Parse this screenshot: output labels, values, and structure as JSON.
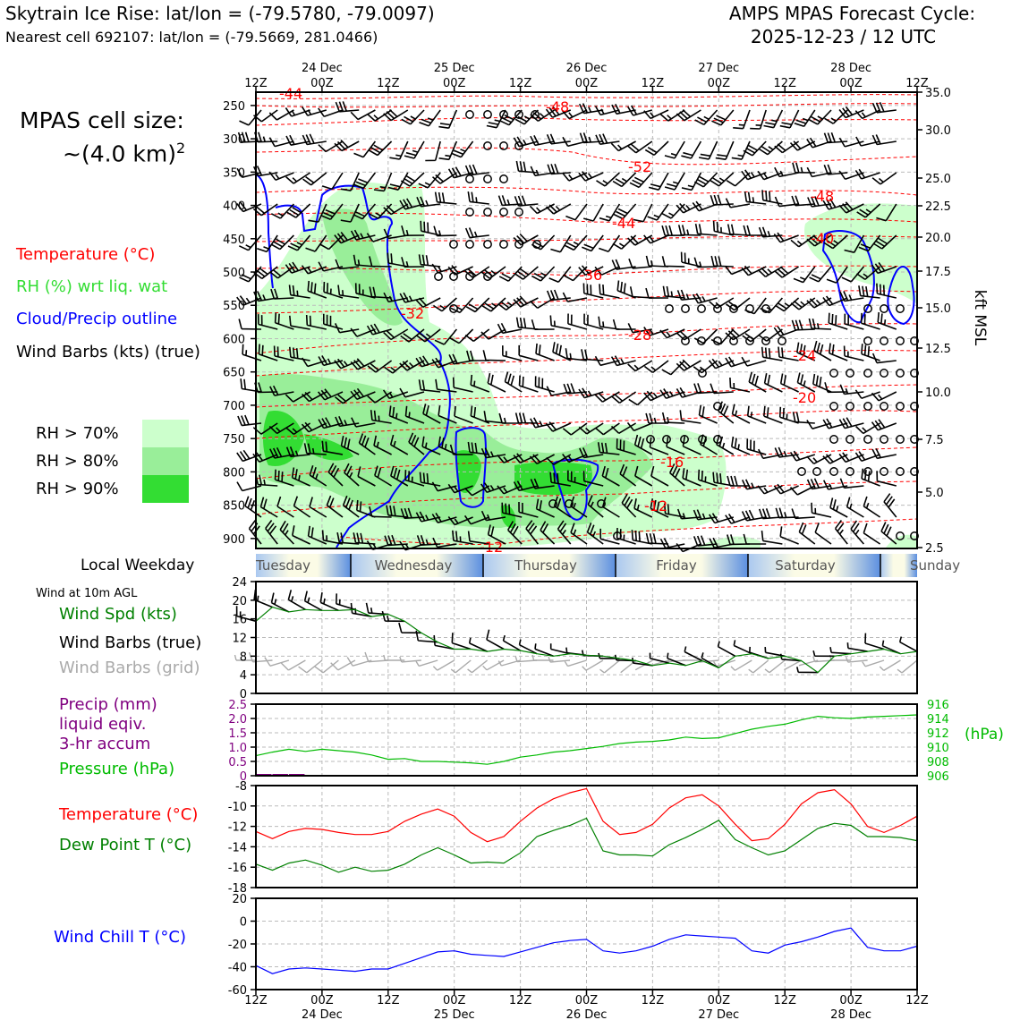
{
  "header": {
    "title_left": "Skytrain Ice Rise: lat/lon = (-79.5780, -79.0097)",
    "subtitle_left": "Nearest cell 692107: lat/lon = (-79.5669, 281.0466)",
    "title_right_1": "AMPS MPAS Forecast Cycle:",
    "title_right_2": "2025-12-23 / 12 UTC"
  },
  "legend": {
    "cell_size_1": "MPAS cell size:",
    "cell_size_2": "~(4.0 km)",
    "cell_size_sup": "2",
    "temperature": "Temperature (°C)",
    "rh": "RH (%) wrt liq. wat",
    "cloud": "Cloud/Precip outline",
    "wind_barbs": "Wind Barbs (kts) (true)",
    "rh70": "RH > 70%",
    "rh80": "RH > 80%",
    "rh90": "RH > 90%",
    "local_weekday": "Local Weekday",
    "wind_10m": "Wind at 10m AGL",
    "wind_spd": "Wind Spd (kts)",
    "barbs_true": "Wind Barbs (true)",
    "barbs_grid": "Wind Barbs (grid)",
    "precip_1": "Precip (mm)",
    "precip_2": "liquid eqiv.",
    "precip_3": "3-hr accum",
    "pressure": "Pressure (hPa)",
    "temp_panel": "Temperature (°C)",
    "dew_panel": "Dew Point T (°C)",
    "wind_chill": "Wind Chill T (°C)"
  },
  "colors": {
    "temperature": "#ff0000",
    "rh_label": "#33dd33",
    "cloud": "#0000ff",
    "rh70": "#ccffcc",
    "rh80": "#99ee99",
    "rh90": "#33dd33",
    "wind_spd": "#008000",
    "barb_grid": "#aaaaaa",
    "precip": "#800080",
    "pressure": "#00bb00",
    "dewpoint": "#008000",
    "wind_chill": "#0000ff"
  },
  "chart_data": {
    "time_axis": {
      "tick_labels": [
        "12Z",
        "00Z",
        "12Z",
        "00Z",
        "12Z",
        "00Z",
        "12Z",
        "00Z",
        "12Z",
        "00Z",
        "12Z"
      ],
      "date_labels": [
        "24 Dec",
        "25 Dec",
        "26 Dec",
        "27 Dec",
        "28 Dec"
      ],
      "hours_start": 0,
      "hours_end": 120
    },
    "weekdays": [
      "Tuesday",
      "Wednesday",
      "Thursday",
      "Friday",
      "Saturday",
      "Sunday"
    ],
    "profile": {
      "type": "time-height",
      "pressure_ticks": [
        250,
        300,
        350,
        400,
        450,
        500,
        550,
        600,
        650,
        700,
        750,
        800,
        850,
        900
      ],
      "pressure_range": [
        230,
        915
      ],
      "kft_ticks": [
        "35.0",
        "30.0",
        "25.0",
        "22.5",
        "20.0",
        "17.5",
        "15.0",
        "12.5",
        "10.0",
        "7.5",
        "5.0",
        "2.5"
      ],
      "kft_label": "kft MSL",
      "temperature_contour_labels": [
        "-44",
        "-48",
        "-52",
        "-48",
        "-44",
        "-40",
        "-36",
        "-32",
        "-28",
        "-24",
        "-20",
        "-16",
        "-12",
        "-12"
      ]
    },
    "wind_10m": {
      "type": "line",
      "ylim": [
        0,
        24
      ],
      "yticks": [
        "24",
        "20",
        "16",
        "12",
        "8",
        "4",
        "0"
      ],
      "series": [
        {
          "name": "Wind Spd (kts)",
          "hours": [
            0,
            3,
            6,
            9,
            12,
            15,
            18,
            21,
            24,
            27,
            30,
            33,
            36,
            39,
            42,
            45,
            48,
            51,
            54,
            57,
            60,
            63,
            66,
            69,
            72,
            75,
            78,
            81,
            84,
            87,
            90,
            93,
            96,
            99,
            102,
            105,
            108,
            111,
            114,
            117,
            120
          ],
          "values": [
            15.5,
            18.5,
            17.5,
            18,
            17.8,
            17.8,
            18,
            16.5,
            17,
            15.5,
            13,
            11,
            9.5,
            9.5,
            9,
            9.5,
            9.2,
            8.5,
            8,
            8.5,
            8.2,
            8,
            7.5,
            7,
            6,
            6.5,
            6,
            7,
            5.5,
            8,
            8.5,
            7.5,
            8,
            7,
            4.5,
            8,
            8.5,
            9,
            9.5,
            8.5,
            9
          ]
        }
      ]
    },
    "precip_pressure": {
      "type": "line",
      "precip_ylim": [
        0,
        2.5
      ],
      "precip_ticks": [
        "2.5",
        "2.0",
        "1.5",
        "1.0",
        "0.5",
        "0"
      ],
      "pressure_ylim": [
        906,
        916
      ],
      "pressure_ticks": [
        "916",
        "914",
        "912",
        "910",
        "908",
        "906"
      ],
      "pressure_label": "(hPa)",
      "precip_values": [
        0.05,
        0.05,
        0.05,
        0.0,
        0,
        0,
        0,
        0,
        0,
        0,
        0,
        0,
        0,
        0,
        0,
        0,
        0,
        0,
        0,
        0,
        0,
        0,
        0,
        0,
        0,
        0,
        0,
        0,
        0,
        0,
        0,
        0,
        0,
        0,
        0,
        0,
        0,
        0,
        0,
        0,
        0
      ],
      "pressure_values": [
        908.8,
        909.3,
        909.7,
        909.4,
        909.7,
        909.5,
        909.3,
        908.9,
        908.3,
        908.4,
        908.0,
        908.0,
        907.9,
        907.8,
        907.6,
        908.0,
        908.6,
        908.9,
        909.3,
        909.5,
        909.8,
        910.1,
        910.5,
        910.7,
        910.8,
        911.0,
        911.4,
        911.2,
        911.3,
        911.9,
        912.5,
        912.9,
        913.2,
        913.8,
        914.3,
        914.1,
        914.0,
        914.2,
        914.3,
        914.4,
        914.5
      ]
    },
    "temp_dew": {
      "type": "line",
      "ylim": [
        -18,
        -8
      ],
      "yticks": [
        "-8",
        "-10",
        "-12",
        "-14",
        "-16",
        "-18"
      ],
      "series": [
        {
          "name": "Temperature (°C)",
          "values": [
            -12.5,
            -13.2,
            -12.5,
            -12.2,
            -12.3,
            -12.6,
            -12.8,
            -12.8,
            -12.5,
            -11.5,
            -10.8,
            -10.3,
            -11.0,
            -12.6,
            -13.5,
            -13.0,
            -11.5,
            -10.2,
            -9.3,
            -8.7,
            -8.3,
            -11.5,
            -12.8,
            -12.6,
            -11.8,
            -10.2,
            -9.2,
            -8.9,
            -10.0,
            -11.8,
            -13.4,
            -13.2,
            -11.8,
            -9.8,
            -8.7,
            -8.4,
            -9.8,
            -12.0,
            -12.6,
            -11.9,
            -11.0
          ]
        },
        {
          "name": "Dew Point T (°C)",
          "values": [
            -15.7,
            -16.3,
            -15.6,
            -15.3,
            -15.8,
            -16.5,
            -16.0,
            -16.4,
            -16.3,
            -15.7,
            -14.8,
            -14.1,
            -14.8,
            -15.6,
            -15.5,
            -15.6,
            -14.6,
            -13.0,
            -12.4,
            -11.9,
            -11.2,
            -14.4,
            -14.8,
            -14.8,
            -14.9,
            -13.8,
            -13.1,
            -12.3,
            -11.4,
            -13.3,
            -14.1,
            -14.8,
            -14.4,
            -13.3,
            -12.2,
            -11.7,
            -11.9,
            -13.0,
            -13.0,
            -13.1,
            -13.4
          ]
        }
      ]
    },
    "wind_chill": {
      "type": "line",
      "ylim": [
        -60,
        20
      ],
      "yticks": [
        "20",
        "0",
        "-20",
        "-40",
        "-60"
      ],
      "series": [
        {
          "name": "Wind Chill T (°C)",
          "values": [
            -39,
            -46,
            -42,
            -41,
            -42,
            -43,
            -44,
            -42,
            -42,
            -37,
            -32,
            -27,
            -26,
            -29,
            -30,
            -31,
            -27,
            -23,
            -19,
            -17,
            -16,
            -26,
            -28,
            -26,
            -22,
            -16,
            -12,
            -13,
            -14,
            -15,
            -26,
            -28,
            -21,
            -18,
            -14,
            -9,
            -6,
            -23,
            -26,
            -26,
            -22
          ]
        }
      ]
    }
  }
}
